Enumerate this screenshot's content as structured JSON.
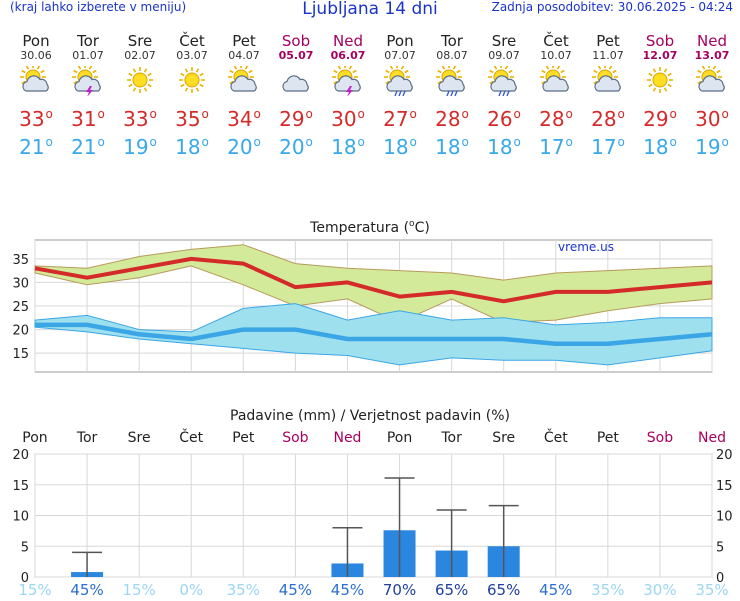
{
  "header": {
    "left_note": "(kraj lahko izberete v meniju)",
    "title": "Ljubljana 14 dni",
    "updated": "Zadnja posodobitev: 30.06.2025 - 04:24"
  },
  "colors": {
    "header_blue": "#1a33cc",
    "max_temp": "#d42a2a",
    "min_temp": "#38a8e8",
    "weekend": "#a5005f",
    "precip_bar": "#2b86e0"
  },
  "days": [
    {
      "name": "Pon",
      "date": "30.06",
      "icon": "sun-cloud-icon",
      "max": "33",
      "min": "21",
      "weekend": false
    },
    {
      "name": "Tor",
      "date": "01.07",
      "icon": "sun-thunder-icon",
      "max": "31",
      "min": "21",
      "weekend": false
    },
    {
      "name": "Sre",
      "date": "02.07",
      "icon": "sun-icon",
      "max": "33",
      "min": "19",
      "weekend": false
    },
    {
      "name": "Čet",
      "date": "03.07",
      "icon": "sun-icon",
      "max": "35",
      "min": "18",
      "weekend": false
    },
    {
      "name": "Pet",
      "date": "04.07",
      "icon": "sun-cloud-icon",
      "max": "34",
      "min": "20",
      "weekend": false
    },
    {
      "name": "Sob",
      "date": "05.07",
      "icon": "cloud-icon",
      "max": "29",
      "min": "20",
      "weekend": true
    },
    {
      "name": "Ned",
      "date": "06.07",
      "icon": "sun-thunder-icon",
      "max": "30",
      "min": "18",
      "weekend": true
    },
    {
      "name": "Pon",
      "date": "07.07",
      "icon": "sun-rain-icon",
      "max": "27",
      "min": "18",
      "weekend": false
    },
    {
      "name": "Tor",
      "date": "08.07",
      "icon": "sun-rain-icon",
      "max": "28",
      "min": "18",
      "weekend": false
    },
    {
      "name": "Sre",
      "date": "09.07",
      "icon": "sun-rain-icon",
      "max": "26",
      "min": "18",
      "weekend": false
    },
    {
      "name": "Čet",
      "date": "10.07",
      "icon": "sun-cloud-icon",
      "max": "28",
      "min": "17",
      "weekend": false
    },
    {
      "name": "Pet",
      "date": "11.07",
      "icon": "sun-cloud-icon",
      "max": "28",
      "min": "17",
      "weekend": false
    },
    {
      "name": "Sob",
      "date": "12.07",
      "icon": "sun-icon",
      "max": "29",
      "min": "18",
      "weekend": true
    },
    {
      "name": "Ned",
      "date": "13.07",
      "icon": "sun-cloud-icon",
      "max": "30",
      "min": "19",
      "weekend": true
    }
  ],
  "degree_symbol": "o",
  "chart_data": [
    {
      "type": "area",
      "title": "Temperatura (",
      "title_deg": "o",
      "title_unit": "C)",
      "watermark": "vreme.us",
      "ylim": [
        11,
        39
      ],
      "yticks": [
        "15",
        "20",
        "25",
        "30",
        "35"
      ],
      "grid": true,
      "categories": [
        "Pon",
        "Tor",
        "Sre",
        "Čet",
        "Pet",
        "Sob",
        "Ned",
        "Pon",
        "Tor",
        "Sre",
        "Čet",
        "Pet",
        "Sob",
        "Ned"
      ],
      "series": [
        {
          "values": [
            33,
            31,
            33,
            35,
            34,
            29,
            30,
            27,
            28,
            26,
            28,
            28,
            29,
            30
          ]
        },
        {
          "values": [
            33.5,
            33,
            35.5,
            37,
            38,
            34,
            33,
            32.5,
            32,
            30.5,
            32,
            32.5,
            33,
            33.5
          ]
        },
        {
          "values": [
            32,
            29.5,
            31,
            33.5,
            29.5,
            25,
            26.5,
            21.5,
            26.5,
            21.5,
            22,
            24,
            25.5,
            26.5
          ]
        },
        {
          "values": [
            21,
            21,
            19,
            18,
            20,
            20,
            18,
            18,
            18,
            18,
            17,
            17,
            18,
            19
          ]
        },
        {
          "values": [
            22,
            23,
            20,
            19.5,
            24.5,
            25.5,
            22,
            24,
            22,
            22.5,
            21,
            21.5,
            22.5,
            22.5
          ]
        },
        {
          "values": [
            20.5,
            19.5,
            18,
            17,
            16,
            15,
            14.5,
            12.5,
            14,
            13.5,
            13.5,
            12.5,
            14,
            15.5
          ]
        }
      ]
    },
    {
      "type": "bar",
      "title": "Padavine (mm) / Verjetnost padavin (%)",
      "ylim": [
        0,
        20
      ],
      "yticks": [
        "0",
        "5",
        "10",
        "15",
        "20"
      ],
      "grid": true,
      "categories": [
        "Pon",
        "Tor",
        "Sre",
        "Čet",
        "Pet",
        "Sob",
        "Ned",
        "Pon",
        "Tor",
        "Sre",
        "Čet",
        "Pet",
        "Sob",
        "Ned"
      ],
      "values": [
        0,
        0.8,
        0,
        0,
        0,
        0,
        2.2,
        7.6,
        4.3,
        5.0,
        0,
        0,
        0,
        0
      ],
      "error_max": [
        0,
        4.0,
        0,
        0,
        0,
        0,
        8.0,
        16.1,
        10.9,
        11.6,
        0,
        0,
        0,
        0
      ],
      "probability": [
        "15%",
        "45%",
        "15%",
        "0%",
        "35%",
        "45%",
        "45%",
        "70%",
        "65%",
        "65%",
        "45%",
        "35%",
        "30%",
        "35%"
      ]
    }
  ]
}
